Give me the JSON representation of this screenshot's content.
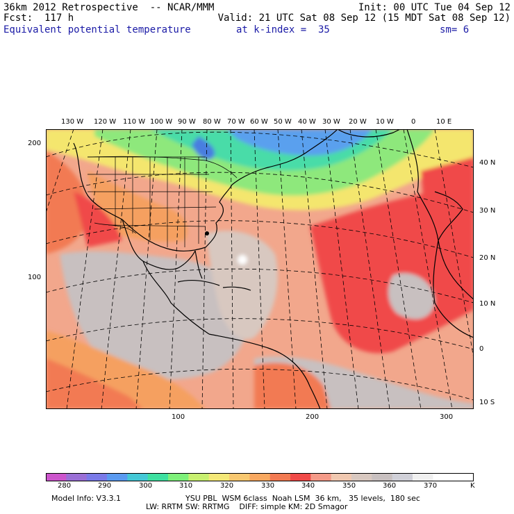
{
  "header": {
    "line1_left": "36km 2012 Retrospective  -- NCAR/MMM",
    "line1_right": "Init: 00 UTC Tue 04 Sep 12",
    "line2_left": "Fcst:  117 h",
    "line2_right": "Valid: 21 UTC Sat 08 Sep 12 (15 MDT Sat 08 Sep 12)",
    "field": "Equivalent potential temperature",
    "kindex": "at k-index =  35",
    "smooth": "sm= 6"
  },
  "longitude_labels": [
    "130 W",
    "120 W",
    "110 W",
    "100 W",
    "90 W",
    "80 W",
    "70 W",
    "60 W",
    "50 W",
    "40 W",
    "30 W",
    "20 W",
    "10 W",
    "0",
    "10 E"
  ],
  "latitude_labels": [
    "40 N",
    "30 N",
    "20 N",
    "10 N",
    "0",
    "10 S"
  ],
  "grid_y_labels": [
    "200",
    "100"
  ],
  "grid_x_labels": [
    "100",
    "200",
    "300"
  ],
  "colorbar": {
    "tick_labels": [
      "280",
      "290",
      "300",
      "310",
      "320",
      "330",
      "340",
      "350",
      "360",
      "370"
    ],
    "unit": "K",
    "colors": [
      "#cc55cc",
      "#9a6fd6",
      "#7a7ae8",
      "#5a9af0",
      "#44c8d6",
      "#3ee0a0",
      "#7ef07a",
      "#c8f070",
      "#f4e878",
      "#f8c870",
      "#f8a860",
      "#f27a52",
      "#f04a48",
      "#f49a88",
      "#f0c8b0",
      "#d8c8c0",
      "#c8c0c0",
      "#d0d0d8",
      "#f0f0f0",
      "#ffffff",
      "#ffffff"
    ]
  },
  "footer": {
    "model_info": "Model Info: V3.3.1",
    "physics_1": "YSU PBL  WSM 6class  Noah LSM  36 km,   35 levels,  180 sec",
    "physics_2": "LW: RRTM SW: RRTMG    DIFF: simple KM: 2D Smagor"
  }
}
